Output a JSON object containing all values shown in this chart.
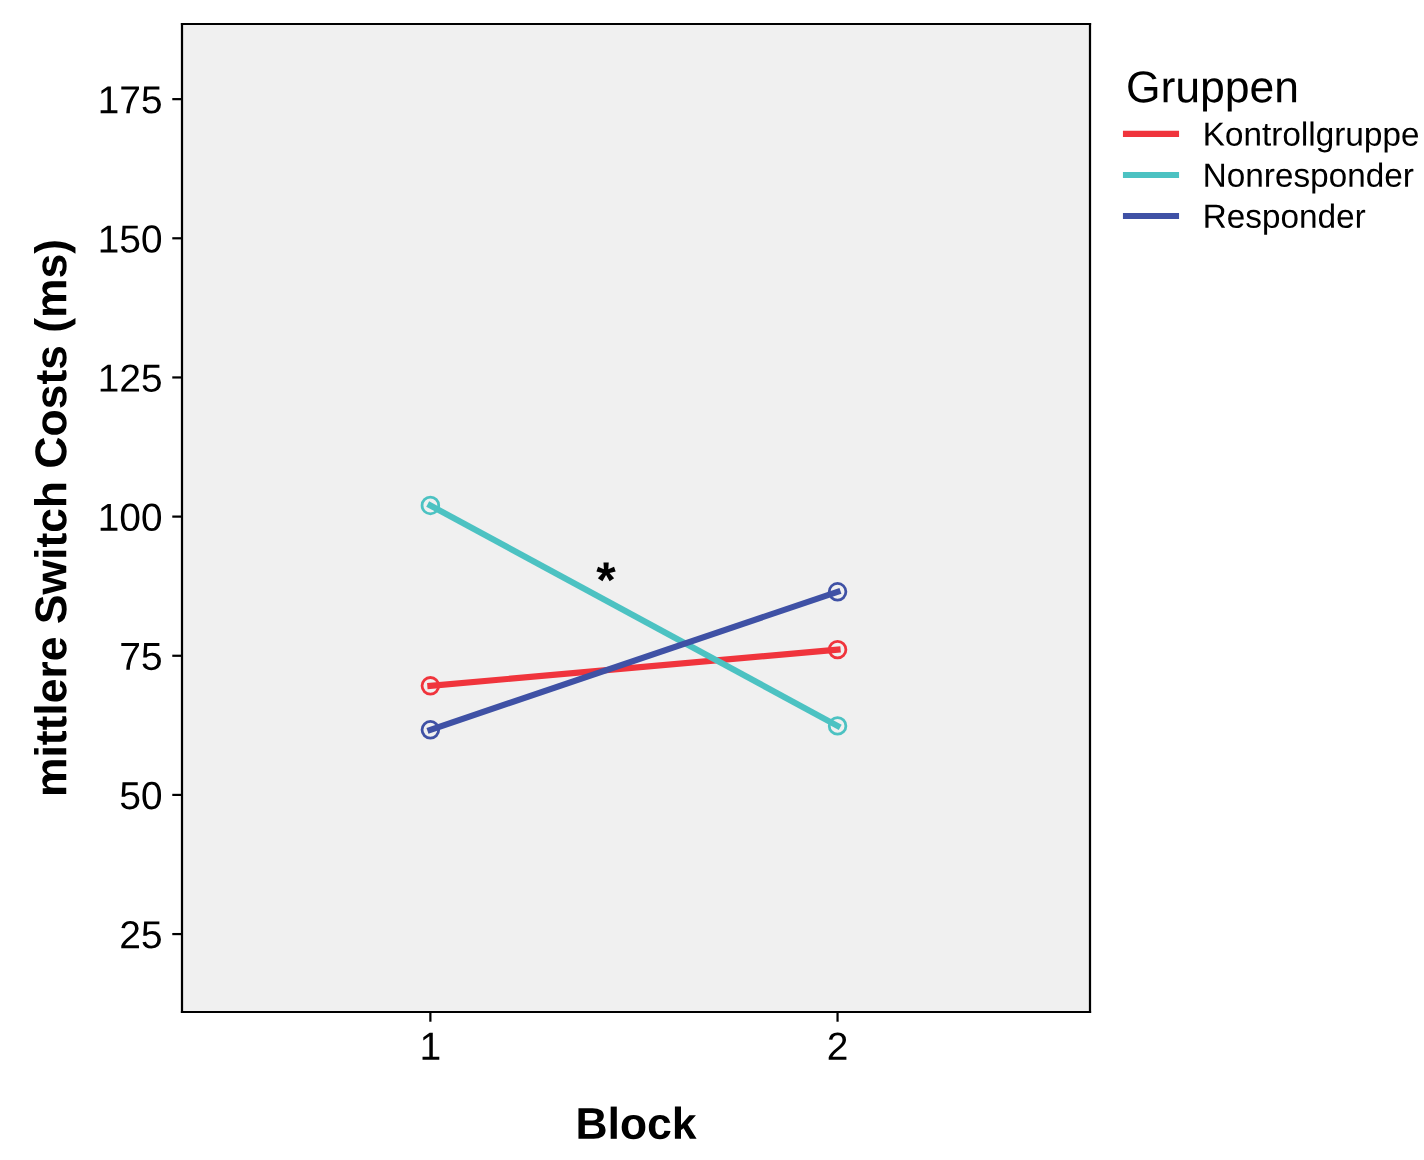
{
  "chart_data": {
    "type": "line",
    "xlabel": "Block",
    "ylabel": "mittlere Switch Costs (ms)",
    "legend_title": "Gruppen",
    "x": [
      1,
      2
    ],
    "xlim": [
      0.39,
      2.62
    ],
    "xticks": [
      1,
      2
    ],
    "ylim": [
      11,
      188.5
    ],
    "yticks": [
      25,
      50,
      75,
      100,
      125,
      150,
      175
    ],
    "series": [
      {
        "name": "Kontrollgruppe",
        "color": "#f0343c",
        "values": [
          69.6,
          76.1
        ]
      },
      {
        "name": "Nonresponder",
        "color": "#4cc2c2",
        "values": [
          102,
          62.4
        ]
      },
      {
        "name": "Responder",
        "color": "#3f51a5",
        "values": [
          61.7,
          86.5
        ]
      }
    ],
    "marker": "circle",
    "grid": false,
    "legend": "right",
    "annotations": [
      "*"
    ]
  }
}
